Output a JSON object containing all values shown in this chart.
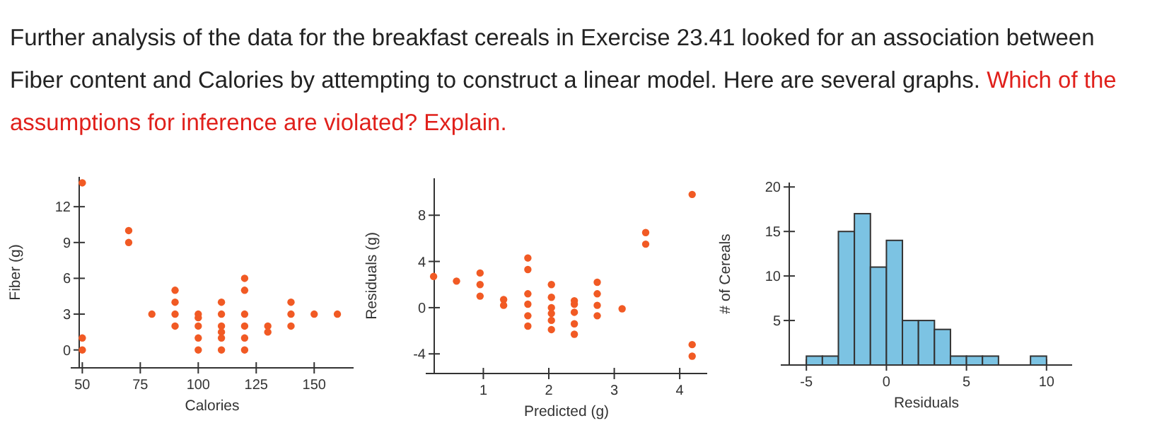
{
  "chart_data": [
    {
      "type": "scatter",
      "title": "Further analysis of the data for the breakfast cereals in Exercise 23.41 looked for an association between Fiber content and Calories by attempting to construct a linear model. Here are several graphs.",
      "subtitle": "Which of the assumptions for inference are violated? Explain.",
      "xlabel": "Calories",
      "ylabel": "Fiber (g)",
      "marker": "circle",
      "grid": false,
      "x": [
        50,
        50,
        50,
        70,
        70,
        80,
        90,
        90,
        90,
        90,
        100,
        100,
        100,
        100,
        100,
        110,
        110,
        110,
        110,
        110,
        110,
        120,
        120,
        120,
        120,
        120,
        120,
        130,
        130,
        140,
        140,
        140,
        150,
        160
      ],
      "series": [
        {
          "color": "#f15a24",
          "values": [
            14,
            1,
            0,
            10,
            9,
            3,
            5,
            4,
            3,
            2,
            3,
            2.7,
            2,
            1,
            0,
            4,
            3,
            2,
            1.5,
            1,
            0,
            6,
            5,
            3,
            2,
            1,
            0,
            2,
            1.5,
            4,
            3,
            2,
            3,
            3
          ]
        }
      ],
      "xlim": [
        45,
        167
      ],
      "xticks": [
        50,
        75,
        100,
        125,
        150
      ],
      "ylim": [
        -1.5,
        14.5
      ],
      "yticks": [
        0,
        3,
        6,
        9,
        12
      ]
    },
    {
      "type": "scatter",
      "xlabel": "Predicted (g)",
      "ylabel": "Residuals (g)",
      "marker": "circle",
      "grid": false,
      "x": [
        0.24,
        0.59,
        0.95,
        0.95,
        0.95,
        1.31,
        1.31,
        1.68,
        1.68,
        1.68,
        1.68,
        1.68,
        1.68,
        2.04,
        2.04,
        2.04,
        2.04,
        2.04,
        2.04,
        2.39,
        2.39,
        2.39,
        2.39,
        2.39,
        2.74,
        2.74,
        2.74,
        2.74,
        3.12,
        3.48,
        3.48,
        4.19,
        4.19,
        4.19
      ],
      "series": [
        {
          "color": "#f15a24",
          "values": [
            2.7,
            2.3,
            3,
            2,
            1,
            0.7,
            0.2,
            4.3,
            3.3,
            1.2,
            0.3,
            -0.7,
            -1.6,
            2,
            0.9,
            0,
            -0.5,
            -1.1,
            -1.9,
            0.6,
            0.3,
            -0.4,
            -1.4,
            -2.3,
            2.2,
            1.2,
            0.2,
            -0.7,
            -0.1,
            6.5,
            5.5,
            9.8,
            -3.2,
            -4.2
          ]
        }
      ],
      "xlim": [
        0.12,
        4.42
      ],
      "xticks": [
        1,
        2,
        3,
        4
      ],
      "ylim": [
        -5.7,
        11.2
      ],
      "yticks": [
        -4,
        0,
        4,
        8
      ]
    },
    {
      "type": "histogram",
      "xlabel": "Residuals",
      "ylabel": "# of Cereals",
      "color": "#7cc3e3",
      "grid": false,
      "bins": [
        -5,
        -4,
        -3,
        -2,
        -1,
        0,
        1,
        2,
        3,
        4,
        5,
        6,
        7,
        8,
        9,
        10
      ],
      "values": [
        1,
        1,
        15,
        17,
        11,
        14,
        5,
        5,
        4,
        1,
        1,
        1,
        0,
        0,
        1
      ],
      "xlim": [
        -6.6,
        11.6
      ],
      "xticks": [
        -5,
        0,
        5,
        10
      ],
      "ylim": [
        0,
        20.5
      ],
      "yticks": [
        5,
        10,
        15,
        20
      ]
    }
  ]
}
